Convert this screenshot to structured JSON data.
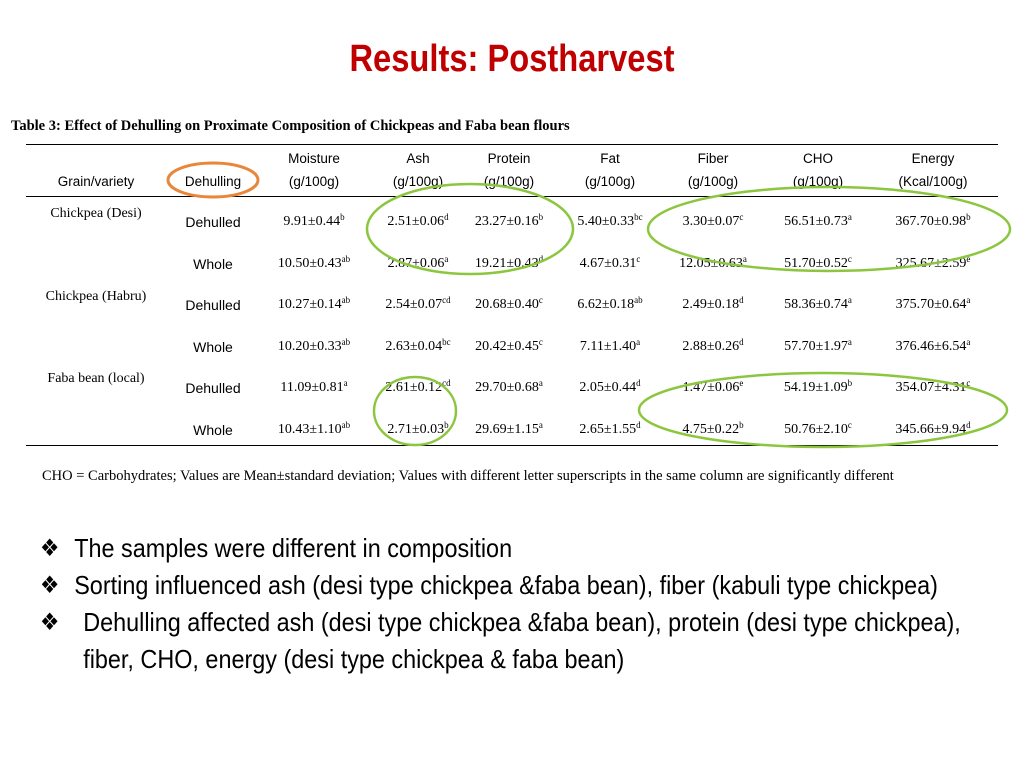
{
  "slide": {
    "title": "Results: Postharvest",
    "caption": "Table 3: Effect of  Dehulling on Proximate Composition of Chickpeas and Faba bean flours"
  },
  "table": {
    "headers": {
      "grain": "Grain/variety",
      "dehulling": "Dehulling",
      "columns": [
        {
          "line1": "Moisture",
          "line2": "(g/100g)"
        },
        {
          "line1": "Ash",
          "line2": "(g/100g)"
        },
        {
          "line1": "Protein",
          "line2": "(g/100g)"
        },
        {
          "line1": "Fat",
          "line2": "(g/100g)"
        },
        {
          "line1": "Fiber",
          "line2": "(g/100g)"
        },
        {
          "line1": "CHO",
          "line2": "(g/100g)"
        },
        {
          "line1": "Energy",
          "line2": "(Kcal/100g)"
        }
      ]
    },
    "grains": [
      "Chickpea (Desi)",
      "Chickpea (Habru)",
      "Faba bean (local)"
    ],
    "rows": [
      {
        "dehulling": "Dehulled",
        "cells": [
          {
            "v": "9.91±0.44",
            "s": "b"
          },
          {
            "v": "2.51±0.06",
            "s": "d"
          },
          {
            "v": "23.27±0.16",
            "s": "b"
          },
          {
            "v": "5.40±0.33",
            "s": "bc"
          },
          {
            "v": "3.30±0.07",
            "s": "c"
          },
          {
            "v": "56.51±0.73",
            "s": "a"
          },
          {
            "v": "367.70±0.98",
            "s": "b"
          }
        ]
      },
      {
        "dehulling": "Whole",
        "cells": [
          {
            "v": "10.50±0.43",
            "s": "ab"
          },
          {
            "v": "2.87±0.06",
            "s": "a"
          },
          {
            "v": "19.21±0.43",
            "s": "d"
          },
          {
            "v": "4.67±0.31",
            "s": "c"
          },
          {
            "v": "12.05±0.63",
            "s": "a"
          },
          {
            "v": "51.70±0.52",
            "s": "c"
          },
          {
            "v": "325.67±2.59",
            "s": "e"
          }
        ]
      },
      {
        "dehulling": "Dehulled",
        "cells": [
          {
            "v": "10.27±0.14",
            "s": "ab"
          },
          {
            "v": "2.54±0.07",
            "s": "cd"
          },
          {
            "v": "20.68±0.40",
            "s": "c"
          },
          {
            "v": "6.62±0.18",
            "s": "ab"
          },
          {
            "v": "2.49±0.18",
            "s": "d"
          },
          {
            "v": "58.36±0.74",
            "s": "a"
          },
          {
            "v": "375.70±0.64",
            "s": "a"
          }
        ]
      },
      {
        "dehulling": "Whole",
        "cells": [
          {
            "v": "10.20±0.33",
            "s": "ab"
          },
          {
            "v": "2.63±0.04",
            "s": "bc"
          },
          {
            "v": "20.42±0.45",
            "s": "c"
          },
          {
            "v": "7.11±1.40",
            "s": "a"
          },
          {
            "v": "2.88±0.26",
            "s": "d"
          },
          {
            "v": "57.70±1.97",
            "s": "a"
          },
          {
            "v": "376.46±6.54",
            "s": "a"
          }
        ]
      },
      {
        "dehulling": "Dehulled",
        "cells": [
          {
            "v": "11.09±0.81",
            "s": "a"
          },
          {
            "v": "2.61±0.12",
            "s": "cd"
          },
          {
            "v": "29.70±0.68",
            "s": "a"
          },
          {
            "v": "2.05±0.44",
            "s": "d"
          },
          {
            "v": "1.47±0.06",
            "s": "e"
          },
          {
            "v": "54.19±1.09",
            "s": "b"
          },
          {
            "v": "354.07±4.31",
            "s": "c"
          }
        ]
      },
      {
        "dehulling": "Whole",
        "cells": [
          {
            "v": "10.43±1.10",
            "s": "ab"
          },
          {
            "v": "2.71±0.03",
            "s": "b"
          },
          {
            "v": "29.69±1.15",
            "s": "a"
          },
          {
            "v": "2.65±1.55",
            "s": "d"
          },
          {
            "v": "4.75±0.22",
            "s": "b"
          },
          {
            "v": "50.76±2.10",
            "s": "c"
          },
          {
            "v": "345.66±9.94",
            "s": "d"
          }
        ]
      }
    ]
  },
  "note": "CHO = Carbohydrates; Values are Mean±standard deviation; Values with different letter superscripts in the same column are significantly different",
  "bullets": [
    "The samples were different in composition",
    "Sorting influenced ash (desi type chickpea &faba bean), fiber (kabuli type chickpea)",
    "Dehulling affected ash (desi type chickpea &faba bean), protein (desi type chickpea), fiber, CHO, energy (desi type chickpea & faba bean)"
  ],
  "bullet_mark": "❖",
  "colors": {
    "title": "#c00000",
    "highlight_green": "#8cc63f",
    "highlight_orange": "#e8863a"
  }
}
